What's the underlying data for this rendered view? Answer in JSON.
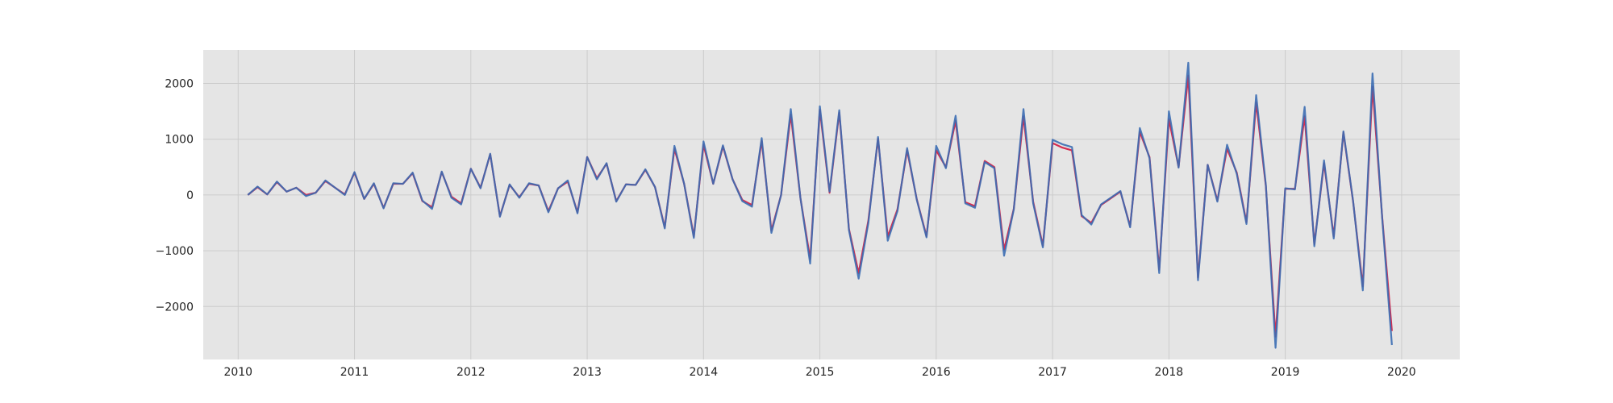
{
  "chart_data": {
    "type": "line",
    "title": "",
    "xlabel": "",
    "ylabel": "",
    "grid": true,
    "legend": "none",
    "xlim": [
      2009.7,
      2020.5
    ],
    "ylim": [
      -2950,
      2600
    ],
    "x_ticks": [
      2010,
      2011,
      2012,
      2013,
      2014,
      2015,
      2016,
      2017,
      2018,
      2019,
      2020
    ],
    "x_tick_labels": [
      "2010",
      "2011",
      "2012",
      "2013",
      "2014",
      "2015",
      "2016",
      "2017",
      "2018",
      "2019",
      "2020"
    ],
    "y_ticks": [
      -2000,
      -1000,
      0,
      1000,
      2000
    ],
    "y_tick_labels": [
      "−2000",
      "−1000",
      "0",
      "1000",
      "2000"
    ],
    "colors": {
      "background": "#e5e5e5",
      "grid": "#cccccc",
      "series_red": "#d62d4f",
      "series_blue": "#3b6db3"
    },
    "x_start": "2010-02",
    "x_step": "1 month",
    "series": [
      {
        "color": "#d62d4f",
        "values": [
          0,
          140,
          10,
          230,
          60,
          130,
          0,
          40,
          250,
          130,
          10,
          400,
          -70,
          200,
          -230,
          200,
          200,
          390,
          -110,
          -220,
          410,
          -30,
          -150,
          470,
          130,
          730,
          -380,
          180,
          -40,
          200,
          170,
          -290,
          120,
          240,
          -310,
          680,
          300,
          560,
          -110,
          190,
          180,
          450,
          140,
          -580,
          830,
          200,
          -740,
          900,
          200,
          870,
          280,
          -90,
          -180,
          970,
          -640,
          0,
          1440,
          -60,
          -1150,
          1530,
          40,
          1480,
          -610,
          -1400,
          -460,
          1010,
          -750,
          -260,
          800,
          -80,
          -740,
          800,
          500,
          1330,
          -130,
          -200,
          610,
          500,
          -980,
          -250,
          1410,
          -120,
          -910,
          930,
          850,
          800,
          -380,
          -500,
          -180,
          -60,
          60,
          -560,
          1130,
          680,
          -1340,
          1360,
          500,
          2140,
          -1480,
          540,
          -100,
          830,
          400,
          -490,
          1660,
          160,
          -2540,
          110,
          110,
          1410,
          -880,
          570,
          -740,
          1120,
          -120,
          -1640,
          1940,
          -400,
          -2440
        ]
      },
      {
        "color": "#3b6db3",
        "values": [
          0,
          150,
          10,
          240,
          60,
          130,
          -20,
          40,
          260,
          130,
          0,
          410,
          -70,
          210,
          -240,
          210,
          200,
          400,
          -100,
          -250,
          420,
          -50,
          -170,
          470,
          120,
          740,
          -390,
          190,
          -50,
          210,
          170,
          -310,
          120,
          260,
          -330,
          680,
          280,
          570,
          -120,
          190,
          180,
          460,
          140,
          -600,
          880,
          200,
          -770,
          960,
          200,
          890,
          280,
          -110,
          -210,
          1020,
          -680,
          0,
          1540,
          -60,
          -1230,
          1590,
          60,
          1520,
          -630,
          -1500,
          -500,
          1040,
          -820,
          -290,
          840,
          -90,
          -760,
          880,
          480,
          1420,
          -150,
          -230,
          590,
          480,
          -1090,
          -260,
          1540,
          -150,
          -940,
          990,
          910,
          860,
          -360,
          -530,
          -170,
          -50,
          70,
          -580,
          1200,
          660,
          -1400,
          1500,
          490,
          2370,
          -1530,
          540,
          -120,
          900,
          380,
          -520,
          1790,
          180,
          -2740,
          120,
          100,
          1580,
          -920,
          620,
          -780,
          1140,
          -110,
          -1710,
          2180,
          -420,
          -2690
        ]
      }
    ]
  }
}
